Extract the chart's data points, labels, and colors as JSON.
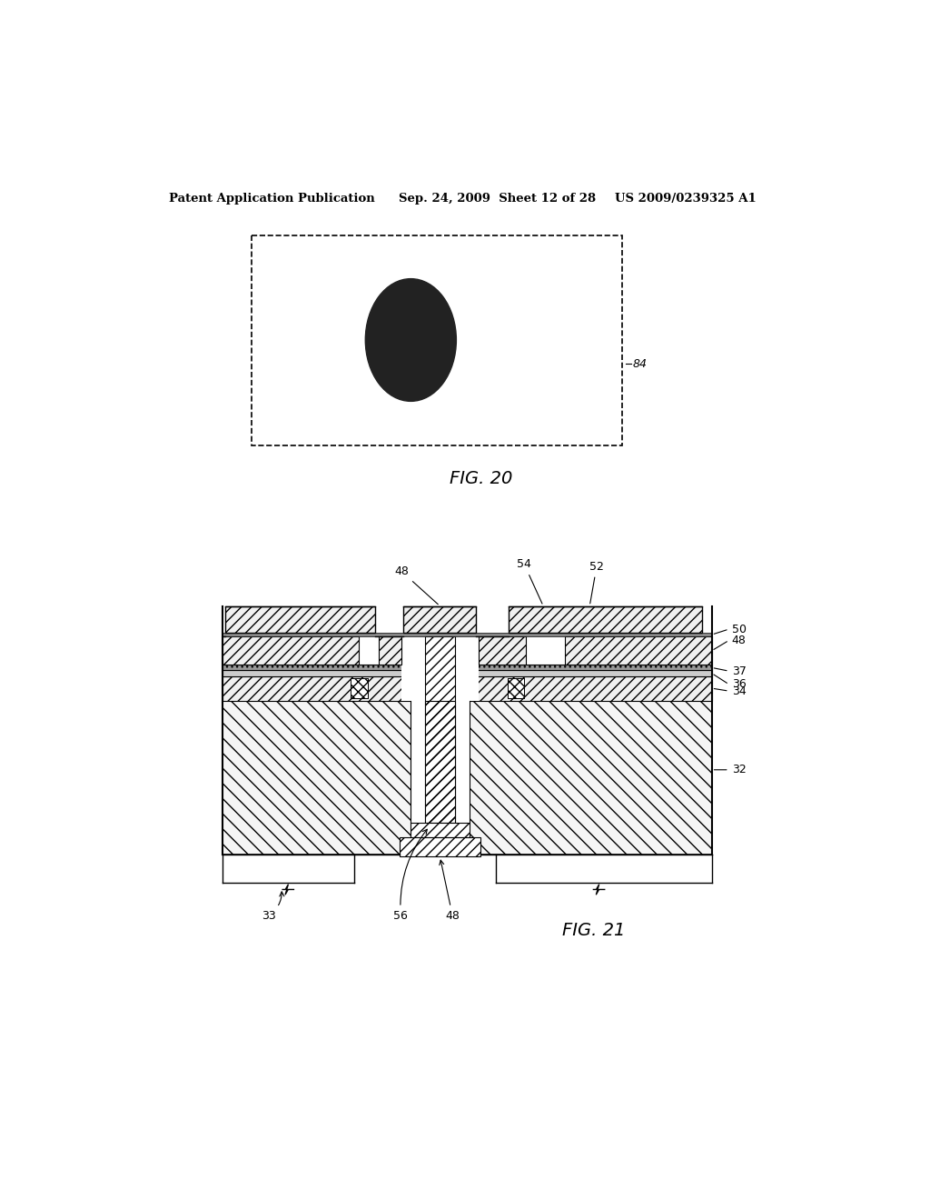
{
  "header_left": "Patent Application Publication",
  "header_mid": "Sep. 24, 2009  Sheet 12 of 28",
  "header_right": "US 2009/0239325 A1",
  "fig20_label": "FIG. 20",
  "fig21_label": "FIG. 21",
  "label_84": "84",
  "label_48a": "48",
  "label_54": "54",
  "label_52": "52",
  "label_50": "50",
  "label_48b": "48",
  "label_37": "37",
  "label_36": "36",
  "label_34": "34",
  "label_32": "32",
  "label_33": "33",
  "label_56": "56",
  "label_48c": "48",
  "bg_color": "#ffffff",
  "dark_ellipse_color": "#222222"
}
